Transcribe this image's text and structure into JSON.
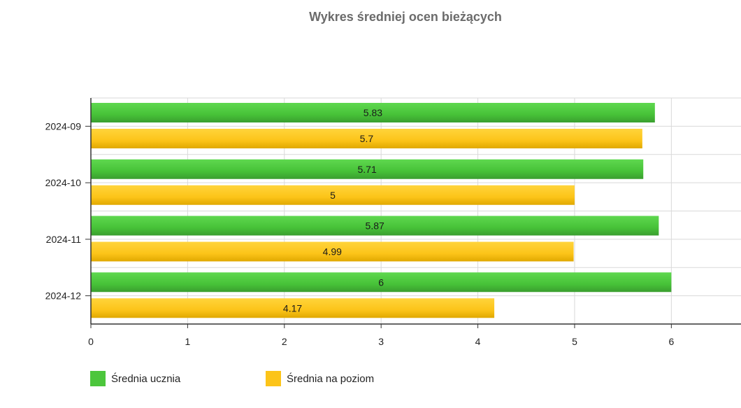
{
  "chart_data": {
    "type": "bar",
    "orientation": "horizontal",
    "title": "Wykres średniej ocen bieżących",
    "categories": [
      "2024-09",
      "2024-10",
      "2024-11",
      "2024-12"
    ],
    "series": [
      {
        "name": "Średnia ucznia",
        "color": "#4cc63c",
        "values": [
          5.83,
          5.71,
          5.87,
          6
        ]
      },
      {
        "name": "Średnia na poziom",
        "color": "#fcc419",
        "values": [
          5.7,
          5,
          4.99,
          4.17
        ]
      }
    ],
    "data_labels": {
      "0": [
        "5.83",
        "5.71",
        "5.87",
        "6"
      ],
      "1": [
        "5.7",
        "5",
        "4.99",
        "4.17"
      ]
    },
    "x_ticks": [
      "0",
      "1",
      "2",
      "3",
      "4",
      "5",
      "6"
    ],
    "xlim": [
      0,
      6.72
    ],
    "grid": true,
    "legend_position": "bottom-left"
  }
}
